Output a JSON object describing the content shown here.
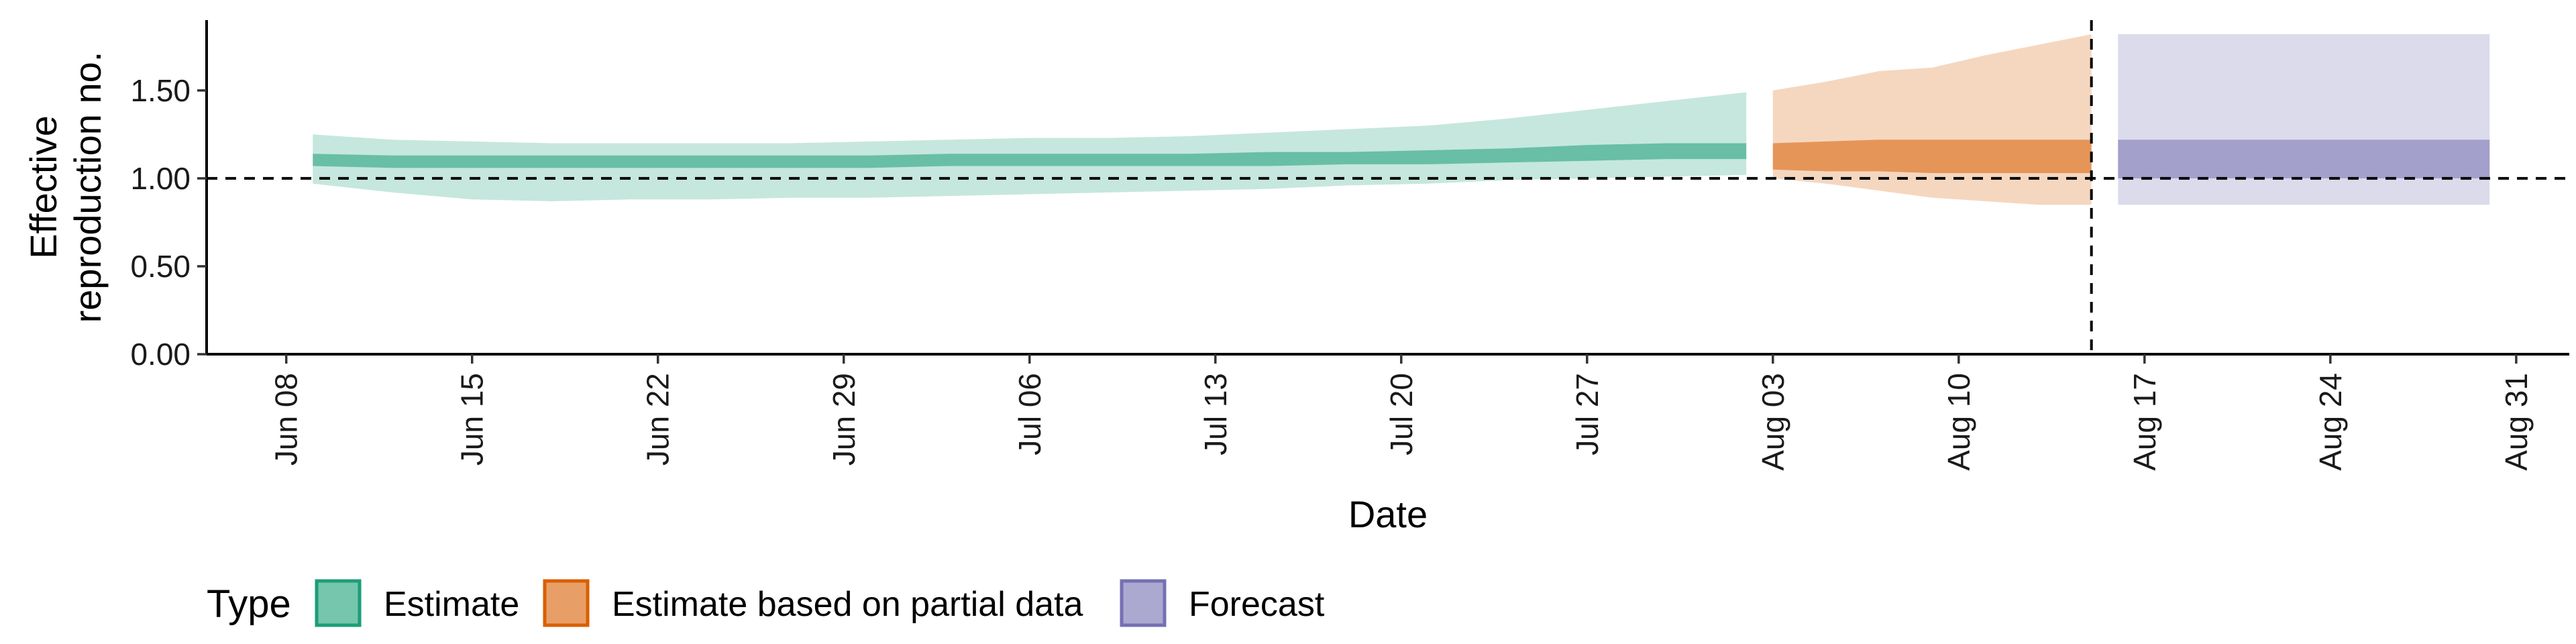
{
  "chart_data": {
    "type": "area",
    "xlabel": "Date",
    "ylabel_lines": [
      "Effective",
      "reproduction no."
    ],
    "ylim": [
      0,
      1.9
    ],
    "y_ticks": [
      0,
      0.5,
      1.0,
      1.5
    ],
    "y_tick_labels": [
      "0.00",
      "0.50",
      "1.00",
      "1.50"
    ],
    "x_range": [
      "2020-06-05",
      "2020-09-02"
    ],
    "x_ticks": [
      "2020-06-08",
      "2020-06-15",
      "2020-06-22",
      "2020-06-29",
      "2020-07-06",
      "2020-07-13",
      "2020-07-20",
      "2020-07-27",
      "2020-08-03",
      "2020-08-10",
      "2020-08-17",
      "2020-08-24",
      "2020-08-31"
    ],
    "x_tick_labels": [
      "Jun 08",
      "Jun 15",
      "Jun 22",
      "Jun 29",
      "Jul 06",
      "Jul 13",
      "Jul 20",
      "Jul 27",
      "Aug 03",
      "Aug 10",
      "Aug 17",
      "Aug 24",
      "Aug 31"
    ],
    "reference_line_y": 1.0,
    "forecast_date_line": "2020-08-15",
    "legend": {
      "title": "Type",
      "position": "bottom",
      "entries": [
        "Estimate",
        "Estimate based on partial data",
        "Forecast"
      ]
    },
    "series": [
      {
        "name": "Estimate",
        "color": "#1b9e77",
        "x": [
          "2020-06-09",
          "2020-06-12",
          "2020-06-15",
          "2020-06-18",
          "2020-06-21",
          "2020-06-24",
          "2020-06-27",
          "2020-06-30",
          "2020-07-03",
          "2020-07-06",
          "2020-07-09",
          "2020-07-12",
          "2020-07-15",
          "2020-07-18",
          "2020-07-21",
          "2020-07-24",
          "2020-07-27",
          "2020-07-30",
          "2020-08-02"
        ],
        "outer_upper": [
          1.25,
          1.22,
          1.21,
          1.2,
          1.2,
          1.2,
          1.2,
          1.21,
          1.22,
          1.23,
          1.23,
          1.24,
          1.26,
          1.28,
          1.3,
          1.34,
          1.39,
          1.44,
          1.49
        ],
        "outer_lower": [
          0.97,
          0.92,
          0.88,
          0.87,
          0.88,
          0.88,
          0.89,
          0.89,
          0.9,
          0.91,
          0.92,
          0.93,
          0.94,
          0.96,
          0.97,
          0.99,
          1.0,
          1.01,
          1.02
        ],
        "inner_upper": [
          1.14,
          1.13,
          1.13,
          1.13,
          1.13,
          1.13,
          1.13,
          1.13,
          1.14,
          1.14,
          1.14,
          1.14,
          1.15,
          1.15,
          1.16,
          1.17,
          1.19,
          1.2,
          1.2
        ],
        "inner_lower": [
          1.07,
          1.06,
          1.06,
          1.06,
          1.06,
          1.06,
          1.06,
          1.06,
          1.07,
          1.07,
          1.07,
          1.07,
          1.07,
          1.08,
          1.08,
          1.09,
          1.1,
          1.11,
          1.11
        ]
      },
      {
        "name": "Estimate based on partial data",
        "color": "#d95f02",
        "x": [
          "2020-08-03",
          "2020-08-05",
          "2020-08-07",
          "2020-08-09",
          "2020-08-11",
          "2020-08-13",
          "2020-08-15"
        ],
        "outer_upper": [
          1.5,
          1.55,
          1.61,
          1.63,
          1.7,
          1.76,
          1.82
        ],
        "outer_lower": [
          1.0,
          0.97,
          0.93,
          0.89,
          0.87,
          0.85,
          0.85
        ],
        "inner_upper": [
          1.2,
          1.21,
          1.22,
          1.22,
          1.22,
          1.22,
          1.22
        ],
        "inner_lower": [
          1.05,
          1.04,
          1.04,
          1.03,
          1.03,
          1.03,
          1.03
        ]
      },
      {
        "name": "Forecast",
        "color": "#7570b3",
        "x": [
          "2020-08-16",
          "2020-08-30"
        ],
        "outer_upper": [
          1.82,
          1.82
        ],
        "outer_lower": [
          0.85,
          0.85
        ],
        "inner_upper": [
          1.22,
          1.22
        ],
        "inner_lower": [
          1.0,
          1.0
        ]
      }
    ]
  }
}
